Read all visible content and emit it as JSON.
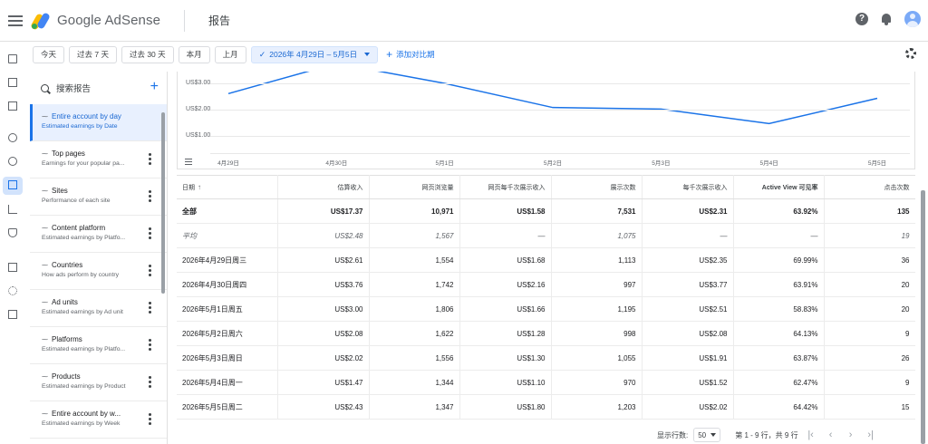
{
  "app": {
    "brand_google": "Google",
    "brand_product": "AdSense",
    "page_title": "报告"
  },
  "filters": {
    "chips": [
      "今天",
      "过去 7 天",
      "过去 30 天",
      "本月",
      "上月"
    ],
    "selected_range": "2026年 4月29日 – 5月5日",
    "compare_label": "添加对比期"
  },
  "sidebar": {
    "search_placeholder": "搜索报告",
    "items": [
      {
        "title": "Entire account by day",
        "subtitle": "Estimated earnings by Date"
      },
      {
        "title": "Top pages",
        "subtitle": "Earnings for your popular pa..."
      },
      {
        "title": "Sites",
        "subtitle": "Performance of each site"
      },
      {
        "title": "Content platform",
        "subtitle": "Estimated earnings by Platfo..."
      },
      {
        "title": "Countries",
        "subtitle": "How ads perform by country"
      },
      {
        "title": "Ad units",
        "subtitle": "Estimated earnings by Ad unit"
      },
      {
        "title": "Platforms",
        "subtitle": "Estimated earnings by Platfo..."
      },
      {
        "title": "Products",
        "subtitle": "Estimated earnings by Product"
      },
      {
        "title": "Entire account by w...",
        "subtitle": "Estimated earnings by Week"
      }
    ]
  },
  "chart_data": {
    "type": "line",
    "categories": [
      "4月29日",
      "4月30日",
      "5月1日",
      "5月2日",
      "5月3日",
      "5月4日",
      "5月5日"
    ],
    "series": [
      {
        "values": [
          2.61,
          3.76,
          3.0,
          2.08,
          2.02,
          1.47,
          2.43
        ],
        "color": "#1a73e8"
      }
    ],
    "y_ticks": [
      "US$3.00",
      "US$2.00",
      "US$1.00"
    ],
    "ylim": [
      0,
      4
    ],
    "grid": true
  },
  "table": {
    "headers": [
      "日期",
      "估算收入",
      "网页浏览量",
      "网页每千次展示收入",
      "展示次数",
      "每千次展示收入",
      "Active View 可见率",
      "点击次数"
    ],
    "total": [
      "全部",
      "US$17.37",
      "10,971",
      "US$1.58",
      "7,531",
      "US$2.31",
      "63.92%",
      "135"
    ],
    "average": [
      "平均",
      "US$2.48",
      "1,567",
      "—",
      "1,075",
      "—",
      "—",
      "19"
    ],
    "rows": [
      [
        "2026年4月29日周三",
        "US$2.61",
        "1,554",
        "US$1.68",
        "1,113",
        "US$2.35",
        "69.99%",
        "36"
      ],
      [
        "2026年4月30日周四",
        "US$3.76",
        "1,742",
        "US$2.16",
        "997",
        "US$3.77",
        "63.91%",
        "20"
      ],
      [
        "2026年5月1日周五",
        "US$3.00",
        "1,806",
        "US$1.66",
        "1,195",
        "US$2.51",
        "58.83%",
        "20"
      ],
      [
        "2026年5月2日周六",
        "US$2.08",
        "1,622",
        "US$1.28",
        "998",
        "US$2.08",
        "64.13%",
        "9"
      ],
      [
        "2026年5月3日周日",
        "US$2.02",
        "1,556",
        "US$1.30",
        "1,055",
        "US$1.91",
        "63.87%",
        "26"
      ],
      [
        "2026年5月4日周一",
        "US$1.47",
        "1,344",
        "US$1.10",
        "970",
        "US$1.52",
        "62.47%",
        "9"
      ],
      [
        "2026年5月5日周二",
        "US$2.43",
        "1,347",
        "US$1.80",
        "1,203",
        "US$2.02",
        "64.42%",
        "15"
      ]
    ]
  },
  "pager": {
    "rows_label": "显示行数:",
    "rows_value": "50",
    "range_text": "第 1 - 9 行，共 9 行"
  }
}
